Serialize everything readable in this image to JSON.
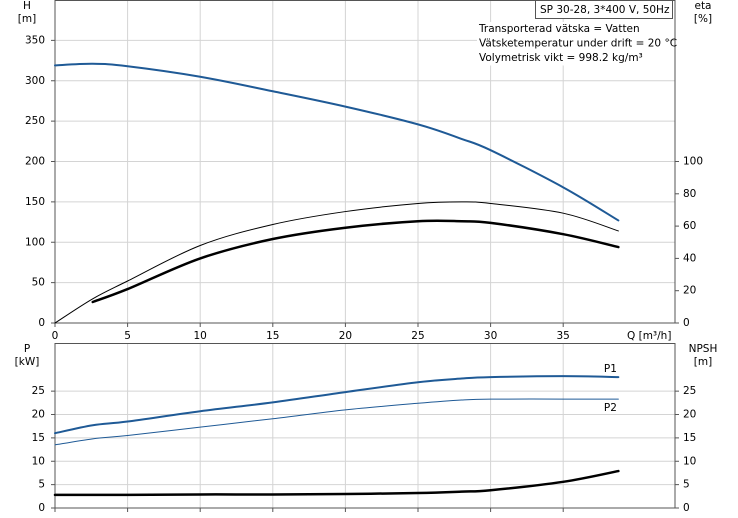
{
  "chart_data": [
    {
      "type": "line",
      "title": "SP 30-28, 3*400 V, 50Hz",
      "notes": [
        "Transporterad vätska = Vatten",
        "Vätsketemperatur under drift = 20 °C",
        "Volymetrisk vikt = 998.2 kg/m³"
      ],
      "xlabel": "Q [m³/h]",
      "ylabel": "H",
      "yunit": "[m]",
      "y2label": "eta",
      "y2unit": "[%]",
      "x": [
        0,
        2.6,
        5,
        10,
        15,
        20,
        25,
        28,
        30,
        35,
        38.8
      ],
      "xlim": [
        0,
        42.7
      ],
      "xticks": [
        0,
        5,
        10,
        15,
        20,
        25,
        30,
        35
      ],
      "show_xtick_labels": true,
      "ylim": [
        0,
        400
      ],
      "yticks": [
        0,
        50,
        100,
        150,
        200,
        250,
        300,
        350
      ],
      "y2lim": [
        0,
        200
      ],
      "y2ticks": [
        0,
        20,
        40,
        60,
        80,
        100
      ],
      "grid": true,
      "series": [
        {
          "color": "#1f5a96",
          "width": 2,
          "values": [
            319,
            321,
            318,
            305,
            287,
            268,
            246,
            228,
            214,
            168,
            127
          ]
        },
        {
          "color": "#000000",
          "width": 1,
          "axis": "y2",
          "values": [
            0,
            15,
            26,
            48,
            61,
            69,
            74,
            75,
            74,
            68,
            57
          ]
        },
        {
          "color": "#000000",
          "width": 2.5,
          "axis": "y2",
          "values": [
            null,
            13,
            21,
            40,
            52,
            59,
            63,
            63,
            62,
            55,
            47
          ]
        }
      ]
    },
    {
      "type": "line",
      "ylabel": "P",
      "yunit": "[kW]",
      "y2label": "NPSH",
      "y2unit": "[m]",
      "x": [
        0,
        2.6,
        5,
        10,
        15,
        20,
        25,
        28,
        30,
        35,
        38.8
      ],
      "xlim": [
        0,
        42.7
      ],
      "xticks": [
        0,
        5,
        10,
        15,
        20,
        25,
        30,
        35
      ],
      "show_xtick_labels": false,
      "ylim": [
        0,
        35.3
      ],
      "yticks": [
        0,
        5,
        10,
        15,
        20,
        25
      ],
      "y2lim": [
        0,
        35.3
      ],
      "y2ticks": [
        0,
        5,
        10,
        15,
        20,
        25
      ],
      "grid": true,
      "series": [
        {
          "name": "P1",
          "color": "#1f5a96",
          "width": 2,
          "values": [
            16,
            17.7,
            18.5,
            20.7,
            22.6,
            24.8,
            26.9,
            27.7,
            28,
            28.2,
            28
          ]
        },
        {
          "name": "P2",
          "color": "#1f5a96",
          "width": 1,
          "values": [
            13.5,
            14.8,
            15.5,
            17.3,
            19.1,
            21,
            22.4,
            23.1,
            23.3,
            23.3,
            23.3
          ]
        },
        {
          "color": "#000000",
          "width": 2.5,
          "axis": "y2",
          "values": [
            2.8,
            2.8,
            2.8,
            2.9,
            2.9,
            3.0,
            3.2,
            3.5,
            3.8,
            5.6,
            7.9
          ]
        }
      ]
    }
  ]
}
